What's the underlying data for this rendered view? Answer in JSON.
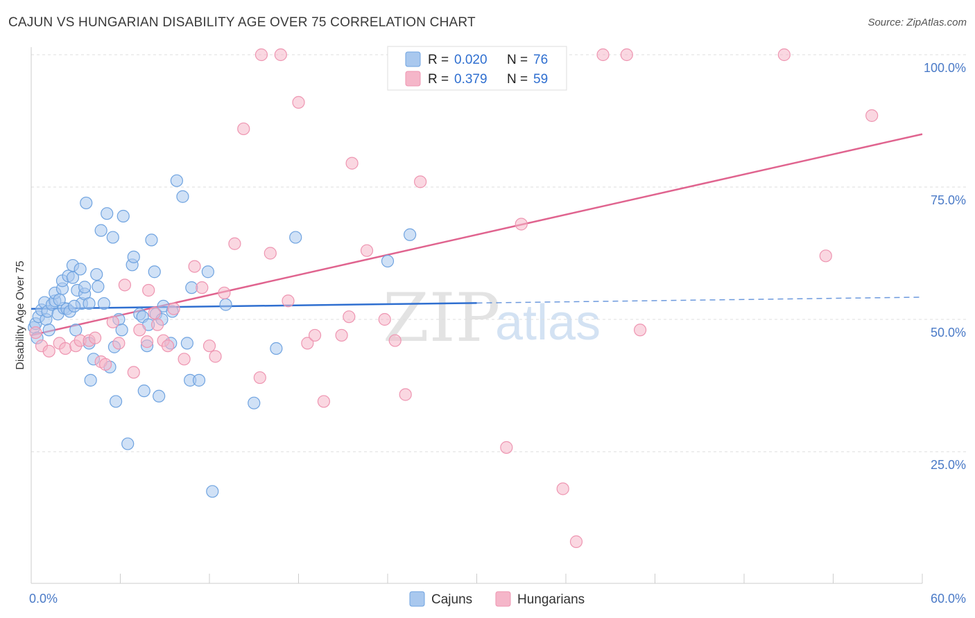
{
  "title": "CAJUN VS HUNGARIAN DISABILITY AGE OVER 75 CORRELATION CHART",
  "source": "Source: ZipAtlas.com",
  "watermark": {
    "zip": "ZIP",
    "atlas": "atlas"
  },
  "legend": {
    "rows": [
      {
        "r_label": "R =",
        "r_value": "0.020",
        "n_label": "N =",
        "n_value": "76",
        "color": "#a9c8ee"
      },
      {
        "r_label": "R =",
        "r_value": "0.379",
        "n_label": "N =",
        "n_value": "59",
        "color": "#f5b6c9"
      }
    ]
  },
  "bottom_legend": [
    {
      "label": "Cajuns",
      "color": "#a9c8ee"
    },
    {
      "label": "Hungarians",
      "color": "#f5b6c9"
    }
  ],
  "chart_data": {
    "type": "scatter",
    "ylabel": "Disability Age Over 75",
    "x_tick_labels": [
      "0.0%",
      "60.0%"
    ],
    "y_tick_labels": [
      "100.0%",
      "75.0%",
      "50.0%",
      "25.0%"
    ],
    "xlim": [
      0,
      60
    ],
    "ylim": [
      0,
      105
    ],
    "y_ticks": [
      100,
      75,
      50,
      25
    ],
    "grid": true,
    "series": [
      {
        "name": "Cajuns",
        "color": "#6fa3e0",
        "fill": "#a9c8ee",
        "trend": {
          "x0": 0,
          "y0": 52.0,
          "x1": 30,
          "y1": 53.1,
          "dash_x1": 60,
          "dash_y1": 54.2,
          "color": "#2f6fd0"
        },
        "points": [
          [
            0.2,
            48.5
          ],
          [
            0.3,
            49.2
          ],
          [
            0.5,
            50.5
          ],
          [
            0.7,
            51.8
          ],
          [
            0.9,
            53.2
          ],
          [
            1.0,
            50.0
          ],
          [
            1.1,
            51.5
          ],
          [
            1.2,
            48.0
          ],
          [
            1.4,
            52.8
          ],
          [
            1.6,
            53.5
          ],
          [
            1.6,
            55.0
          ],
          [
            1.8,
            51.0
          ],
          [
            2.1,
            55.8
          ],
          [
            2.1,
            57.3
          ],
          [
            2.2,
            52.1
          ],
          [
            2.4,
            52.0
          ],
          [
            2.5,
            58.2
          ],
          [
            2.6,
            51.5
          ],
          [
            2.8,
            57.9
          ],
          [
            2.8,
            60.2
          ],
          [
            3.0,
            48.0
          ],
          [
            3.1,
            55.5
          ],
          [
            3.3,
            59.5
          ],
          [
            3.4,
            53.0
          ],
          [
            3.6,
            54.8
          ],
          [
            3.6,
            56.1
          ],
          [
            3.7,
            72.0
          ],
          [
            3.9,
            45.5
          ],
          [
            3.9,
            53.0
          ],
          [
            4.0,
            38.5
          ],
          [
            4.2,
            42.5
          ],
          [
            4.4,
            58.5
          ],
          [
            4.5,
            56.2
          ],
          [
            4.7,
            66.8
          ],
          [
            4.9,
            53.0
          ],
          [
            5.1,
            70.0
          ],
          [
            5.3,
            41.0
          ],
          [
            5.5,
            65.5
          ],
          [
            5.6,
            44.8
          ],
          [
            5.7,
            34.5
          ],
          [
            5.9,
            50.0
          ],
          [
            6.1,
            48.0
          ],
          [
            6.2,
            69.5
          ],
          [
            6.5,
            26.5
          ],
          [
            6.8,
            60.3
          ],
          [
            6.9,
            61.8
          ],
          [
            7.3,
            51.0
          ],
          [
            7.5,
            50.5
          ],
          [
            7.6,
            36.5
          ],
          [
            7.8,
            45.0
          ],
          [
            7.9,
            49.0
          ],
          [
            8.1,
            65.0
          ],
          [
            8.3,
            59.0
          ],
          [
            8.4,
            51.0
          ],
          [
            8.6,
            35.5
          ],
          [
            8.8,
            50.0
          ],
          [
            8.9,
            52.5
          ],
          [
            9.4,
            45.5
          ],
          [
            9.5,
            51.5
          ],
          [
            9.8,
            76.2
          ],
          [
            10.2,
            73.2
          ],
          [
            10.5,
            45.5
          ],
          [
            10.7,
            38.5
          ],
          [
            10.8,
            56.0
          ],
          [
            11.3,
            38.5
          ],
          [
            11.9,
            59.0
          ],
          [
            12.2,
            17.5
          ],
          [
            13.1,
            52.8
          ],
          [
            15.0,
            34.2
          ],
          [
            16.5,
            44.5
          ],
          [
            17.8,
            65.5
          ],
          [
            24.0,
            61.0
          ],
          [
            25.5,
            66.0
          ],
          [
            0.4,
            46.5
          ],
          [
            1.9,
            53.7
          ],
          [
            2.9,
            52.5
          ]
        ]
      },
      {
        "name": "Hungarians",
        "color": "#ee95b1",
        "fill": "#f5b6c9",
        "trend": {
          "x0": 0,
          "y0": 47.0,
          "x1": 60,
          "y1": 85.0,
          "color": "#e0648f"
        },
        "points": [
          [
            0.3,
            47.5
          ],
          [
            0.7,
            45.0
          ],
          [
            1.2,
            44.0
          ],
          [
            1.9,
            45.5
          ],
          [
            2.3,
            44.5
          ],
          [
            3.0,
            45.0
          ],
          [
            3.3,
            46.0
          ],
          [
            3.9,
            46.0
          ],
          [
            4.3,
            46.5
          ],
          [
            4.7,
            42.0
          ],
          [
            5.0,
            41.5
          ],
          [
            5.5,
            49.5
          ],
          [
            5.9,
            45.5
          ],
          [
            6.3,
            56.5
          ],
          [
            6.9,
            40.0
          ],
          [
            7.3,
            48.0
          ],
          [
            7.8,
            45.8
          ],
          [
            7.9,
            55.5
          ],
          [
            8.3,
            51.2
          ],
          [
            8.5,
            49.0
          ],
          [
            8.9,
            46.0
          ],
          [
            9.2,
            45.0
          ],
          [
            9.6,
            52.0
          ],
          [
            10.3,
            42.5
          ],
          [
            11.0,
            60.0
          ],
          [
            11.5,
            56.0
          ],
          [
            12.0,
            45.0
          ],
          [
            12.4,
            43.0
          ],
          [
            13.0,
            55.0
          ],
          [
            13.7,
            64.3
          ],
          [
            14.3,
            86.0
          ],
          [
            15.4,
            39.0
          ],
          [
            15.5,
            100.0
          ],
          [
            16.1,
            62.5
          ],
          [
            16.8,
            100.0
          ],
          [
            17.3,
            53.5
          ],
          [
            18.0,
            91.0
          ],
          [
            18.6,
            45.5
          ],
          [
            19.1,
            47.0
          ],
          [
            19.7,
            34.5
          ],
          [
            20.9,
            47.0
          ],
          [
            21.4,
            50.5
          ],
          [
            21.6,
            79.5
          ],
          [
            22.6,
            63.0
          ],
          [
            23.8,
            50.0
          ],
          [
            24.5,
            46.0
          ],
          [
            25.2,
            35.8
          ],
          [
            26.2,
            76.0
          ],
          [
            27.5,
            100.0
          ],
          [
            32.0,
            25.8
          ],
          [
            33.0,
            68.0
          ],
          [
            35.8,
            18.0
          ],
          [
            36.7,
            8.0
          ],
          [
            38.5,
            100.0
          ],
          [
            40.1,
            100.0
          ],
          [
            41.0,
            48.0
          ],
          [
            50.7,
            100.0
          ],
          [
            53.5,
            62.0
          ],
          [
            56.6,
            88.5
          ]
        ]
      }
    ]
  }
}
